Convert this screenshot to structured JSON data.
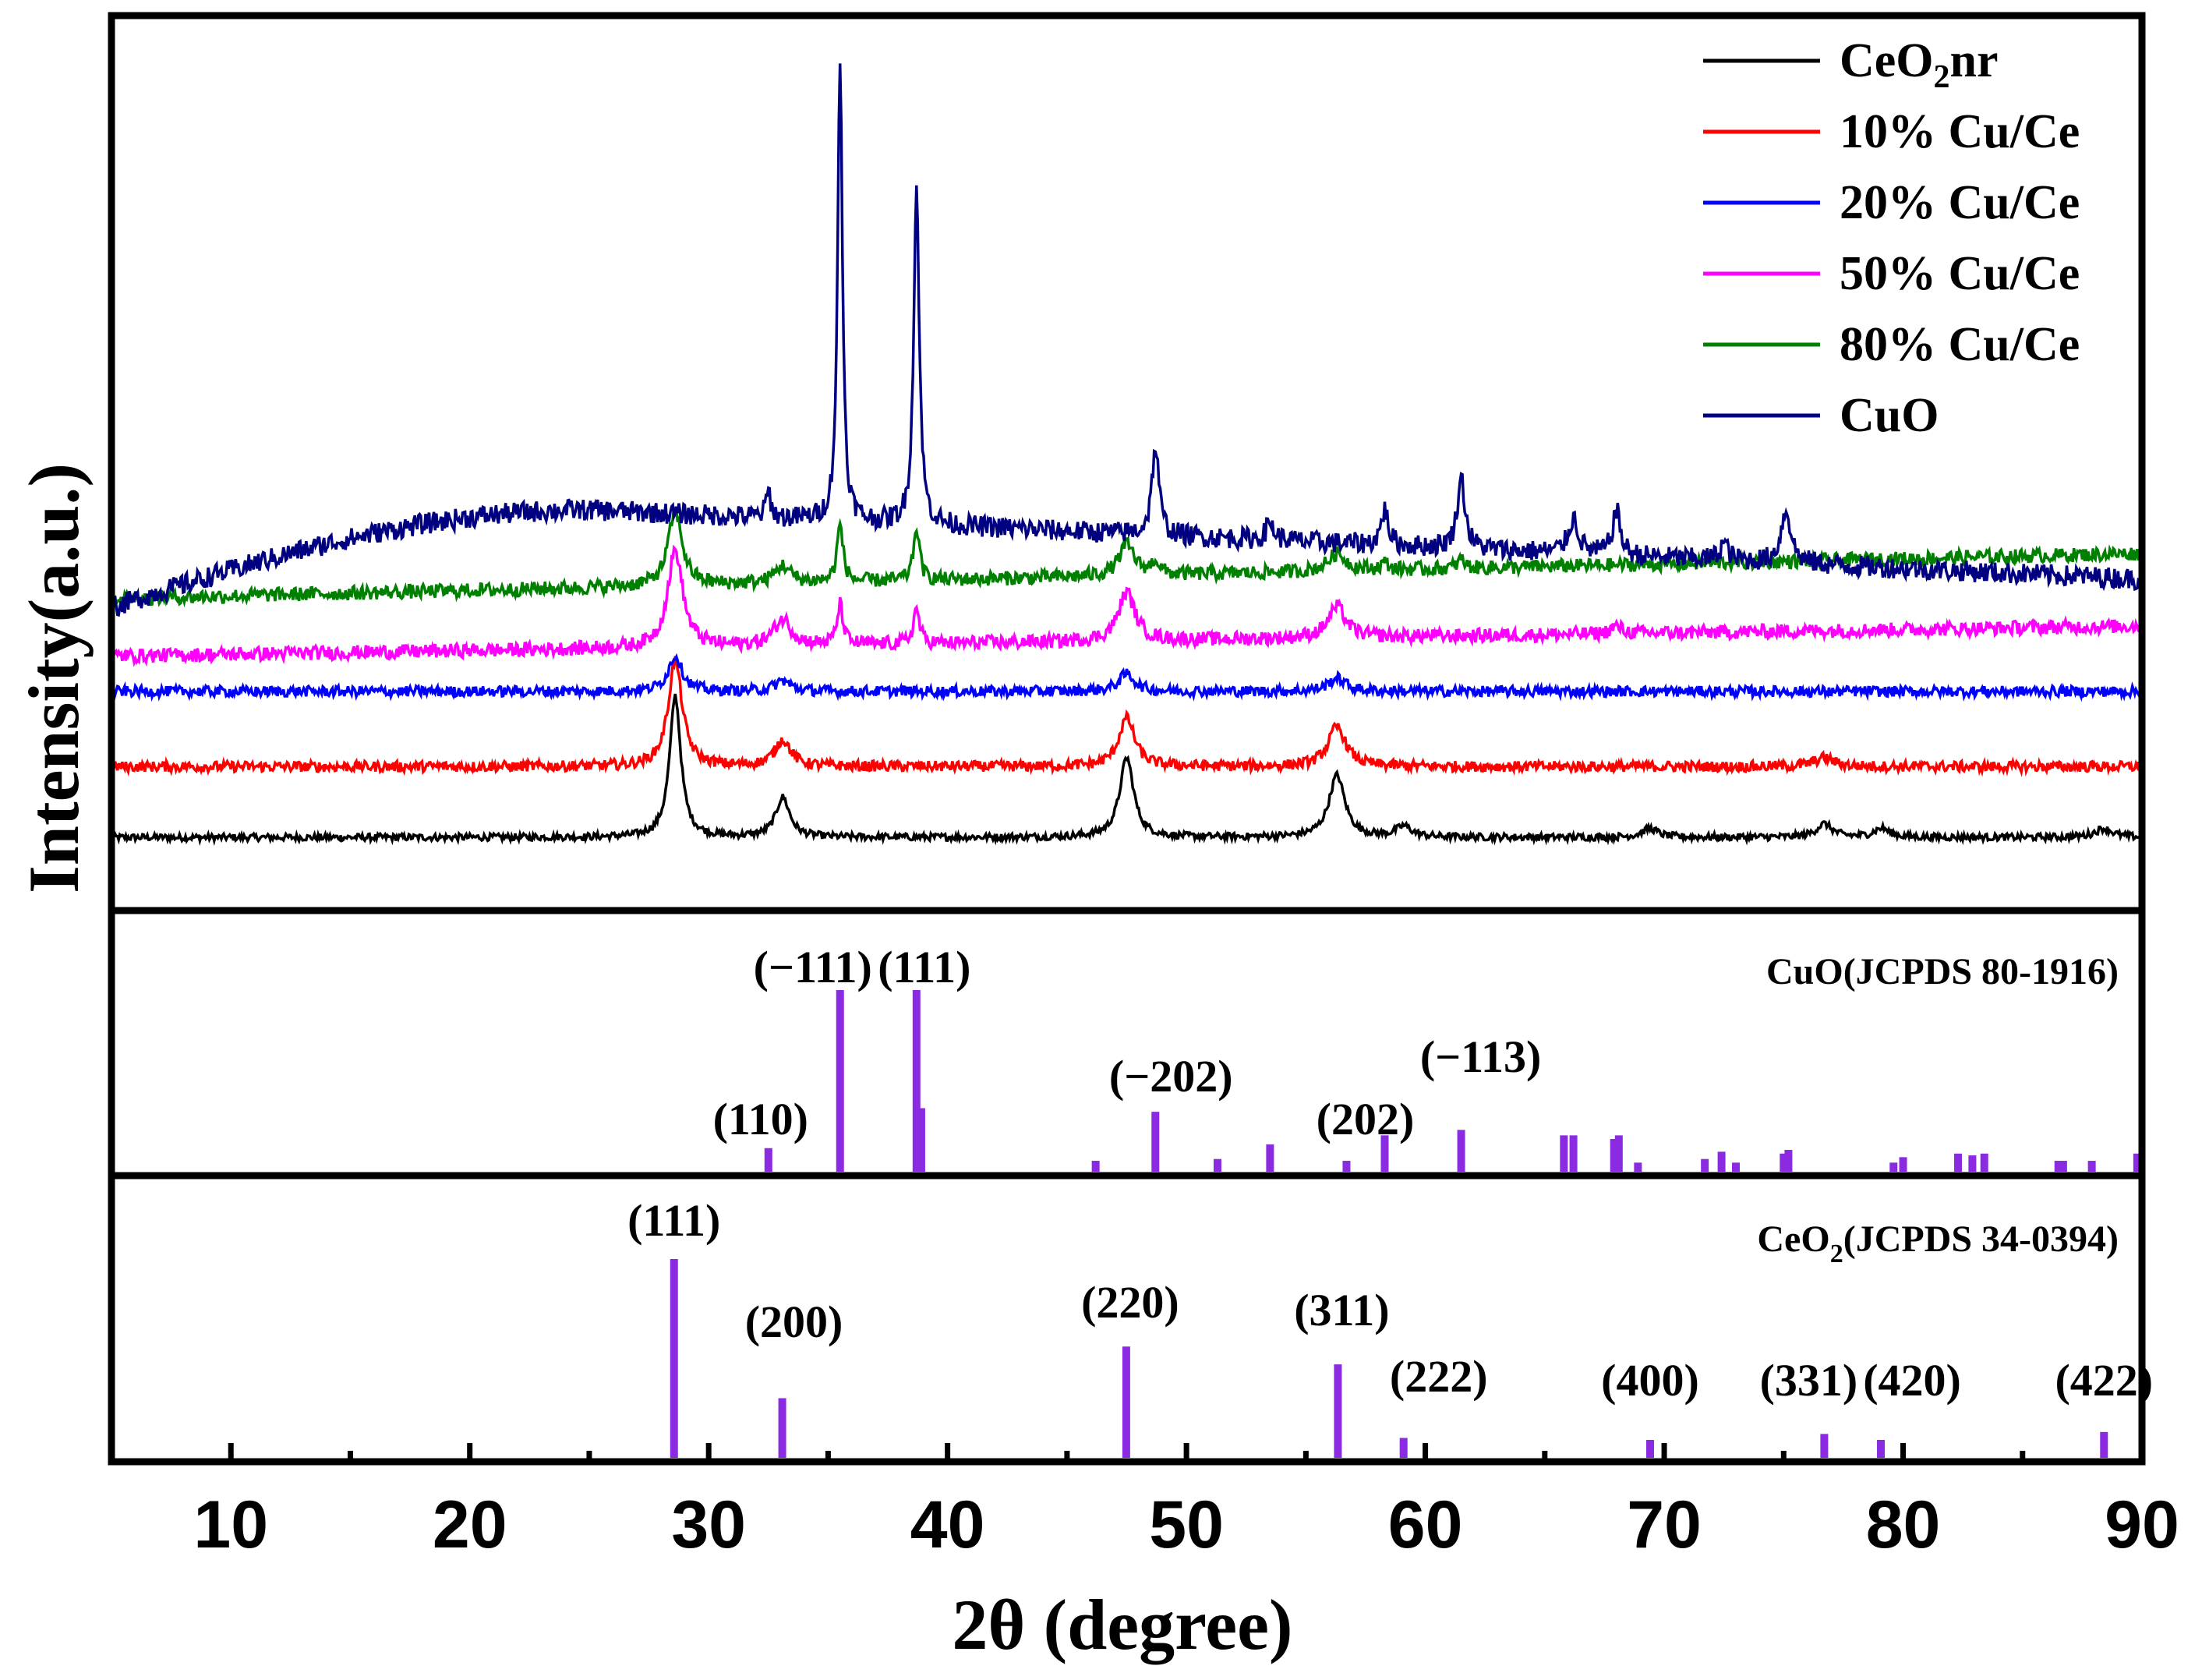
{
  "chart_data": {
    "type": "line",
    "xlabel": "2θ (degree)",
    "ylabel": "Intensity(a.u.)",
    "xlim": [
      5,
      90
    ],
    "xticks": [
      10,
      20,
      30,
      40,
      50,
      60,
      70,
      80,
      90
    ],
    "colors": {
      "CeO2nr": "#000000",
      "Cu10": "#ff0000",
      "Cu20": "#0000ff",
      "Cu50": "#ff00ff",
      "Cu80": "#008000",
      "CuO": "#000080",
      "stick": "#8a2be2"
    },
    "legend": {
      "position": "top-right",
      "entries": [
        {
          "key": "CeO2nr",
          "label_main": "CeO",
          "label_sub": "2",
          "label_rest": "nr"
        },
        {
          "key": "Cu10",
          "label": "10% Cu/Ce"
        },
        {
          "key": "Cu20",
          "label": "20% Cu/Ce"
        },
        {
          "key": "Cu50",
          "label": "50% Cu/Ce"
        },
        {
          "key": "Cu80",
          "label": "80% Cu/Ce"
        },
        {
          "key": "CuO",
          "label": "CuO"
        }
      ]
    },
    "series": [
      {
        "name": "CeO2nr",
        "key": "CeO2nr",
        "baseline": 0.08,
        "slope": 0,
        "noise": 0.004,
        "peaks": [
          [
            28.6,
            0.16,
            0.28
          ],
          [
            33.1,
            0.045,
            0.35
          ],
          [
            47.5,
            0.09,
            0.35
          ],
          [
            56.3,
            0.07,
            0.4
          ],
          [
            59.1,
            0.012,
            0.4
          ],
          [
            69.4,
            0.01,
            0.4
          ],
          [
            76.7,
            0.015,
            0.4
          ],
          [
            79.1,
            0.01,
            0.4
          ],
          [
            88.4,
            0.01,
            0.45
          ]
        ]
      },
      {
        "name": "10% Cu/Ce",
        "key": "Cu10",
        "baseline": 0.16,
        "slope": 0,
        "noise": 0.006,
        "peaks": [
          [
            28.6,
            0.12,
            0.35
          ],
          [
            33.1,
            0.03,
            0.4
          ],
          [
            47.5,
            0.055,
            0.4
          ],
          [
            56.3,
            0.045,
            0.45
          ],
          [
            76.7,
            0.01,
            0.5
          ]
        ]
      },
      {
        "name": "20% Cu/Ce",
        "key": "Cu20",
        "baseline": 0.245,
        "slope": 0,
        "noise": 0.006,
        "peaks": [
          [
            28.6,
            0.04,
            0.35
          ],
          [
            33.1,
            0.012,
            0.4
          ],
          [
            47.5,
            0.02,
            0.4
          ],
          [
            56.3,
            0.015,
            0.45
          ]
        ]
      },
      {
        "name": "50% Cu/Ce",
        "key": "Cu50",
        "baseline": 0.285,
        "slope": 0.0004,
        "noise": 0.008,
        "peaks": [
          [
            28.6,
            0.11,
            0.38
          ],
          [
            33.1,
            0.03,
            0.45
          ],
          [
            35.5,
            0.045,
            0.15
          ],
          [
            38.7,
            0.04,
            0.15
          ],
          [
            47.5,
            0.055,
            0.42
          ],
          [
            56.3,
            0.035,
            0.45
          ],
          [
            68.0,
            0.008,
            0.3
          ]
        ]
      },
      {
        "name": "80% Cu/Ce",
        "key": "Cu80",
        "baseline": 0.35,
        "slope": 0.0006,
        "noise": 0.008,
        "peaks": [
          [
            28.6,
            0.085,
            0.35
          ],
          [
            33.1,
            0.02,
            0.4
          ],
          [
            35.5,
            0.065,
            0.15
          ],
          [
            38.7,
            0.06,
            0.15
          ],
          [
            47.5,
            0.035,
            0.4
          ],
          [
            48.7,
            0.015,
            0.2
          ],
          [
            56.3,
            0.02,
            0.45
          ],
          [
            58.3,
            0.008,
            0.2
          ],
          [
            61.5,
            0.01,
            0.2
          ]
        ]
      },
      {
        "name": "CuO",
        "key": "CuO",
        "baseline": 0.37,
        "slope": 0,
        "noise": 0.012,
        "broad": {
          "start": 0.34,
          "plateau": 0.45,
          "rise_end": 25,
          "fall": 0.0012
        },
        "peaks": [
          [
            32.5,
            0.03,
            0.12
          ],
          [
            35.5,
            0.52,
            0.12
          ],
          [
            38.7,
            0.38,
            0.14
          ],
          [
            48.7,
            0.1,
            0.18
          ],
          [
            53.5,
            0.02,
            0.2
          ],
          [
            58.3,
            0.04,
            0.18
          ],
          [
            61.5,
            0.08,
            0.2
          ],
          [
            66.2,
            0.04,
            0.25
          ],
          [
            68.0,
            0.05,
            0.2
          ],
          [
            72.5,
            0.02,
            0.2
          ],
          [
            75.1,
            0.06,
            0.25
          ]
        ]
      }
    ],
    "references": [
      {
        "name": "CuO(JCPDS 80-1916)",
        "title": "CuO(JCPDS 80-1916)",
        "sticks": [
          [
            32.5,
            0.13
          ],
          [
            35.5,
            1.0
          ],
          [
            38.7,
            1.0
          ],
          [
            38.9,
            0.35
          ],
          [
            46.2,
            0.06
          ],
          [
            48.7,
            0.33
          ],
          [
            51.3,
            0.07
          ],
          [
            53.5,
            0.15
          ],
          [
            56.7,
            0.06
          ],
          [
            58.3,
            0.2
          ],
          [
            61.5,
            0.23
          ],
          [
            65.8,
            0.2
          ],
          [
            66.2,
            0.2
          ],
          [
            67.9,
            0.18
          ],
          [
            68.1,
            0.2
          ],
          [
            68.9,
            0.05
          ],
          [
            71.7,
            0.07
          ],
          [
            72.4,
            0.11
          ],
          [
            73.0,
            0.05
          ],
          [
            75.0,
            0.1
          ],
          [
            75.2,
            0.12
          ],
          [
            79.6,
            0.05
          ],
          [
            80.0,
            0.08
          ],
          [
            82.3,
            0.1
          ],
          [
            82.9,
            0.09
          ],
          [
            83.4,
            0.1
          ],
          [
            86.5,
            0.06
          ],
          [
            86.7,
            0.06
          ],
          [
            87.9,
            0.06
          ],
          [
            89.8,
            0.1
          ]
        ],
        "labels": [
          {
            "text": "(110)",
            "x": 32.5
          },
          {
            "text": "(−111)",
            "x": 35.5
          },
          {
            "text": "(111)",
            "x": 38.7
          },
          {
            "text": "(−202)",
            "x": 48.7
          },
          {
            "text": "(202)",
            "x": 58.3
          },
          {
            "text": "(−113)",
            "x": 61.5
          }
        ]
      },
      {
        "name": "CeO2(JCPDS 34-0394)",
        "title_main": "CeO",
        "title_sub": "2",
        "title_rest": "(JCPDS 34-0394)",
        "sticks": [
          [
            28.55,
            1.0
          ],
          [
            33.08,
            0.3
          ],
          [
            47.48,
            0.56
          ],
          [
            56.34,
            0.47
          ],
          [
            59.09,
            0.1
          ],
          [
            69.41,
            0.09
          ],
          [
            76.7,
            0.12
          ],
          [
            79.07,
            0.09
          ],
          [
            88.41,
            0.13
          ]
        ],
        "labels": [
          {
            "text": "(111)",
            "x": 28.55
          },
          {
            "text": "(200)",
            "x": 33.08
          },
          {
            "text": "(220)",
            "x": 47.48
          },
          {
            "text": "(311)",
            "x": 56.34
          },
          {
            "text": "(222)",
            "x": 59.09
          },
          {
            "text": "(400)",
            "x": 69.41
          },
          {
            "text": "(331)",
            "x": 76.7
          },
          {
            "text": "(420)",
            "x": 79.07
          },
          {
            "text": "(422)",
            "x": 88.41
          }
        ]
      }
    ]
  }
}
